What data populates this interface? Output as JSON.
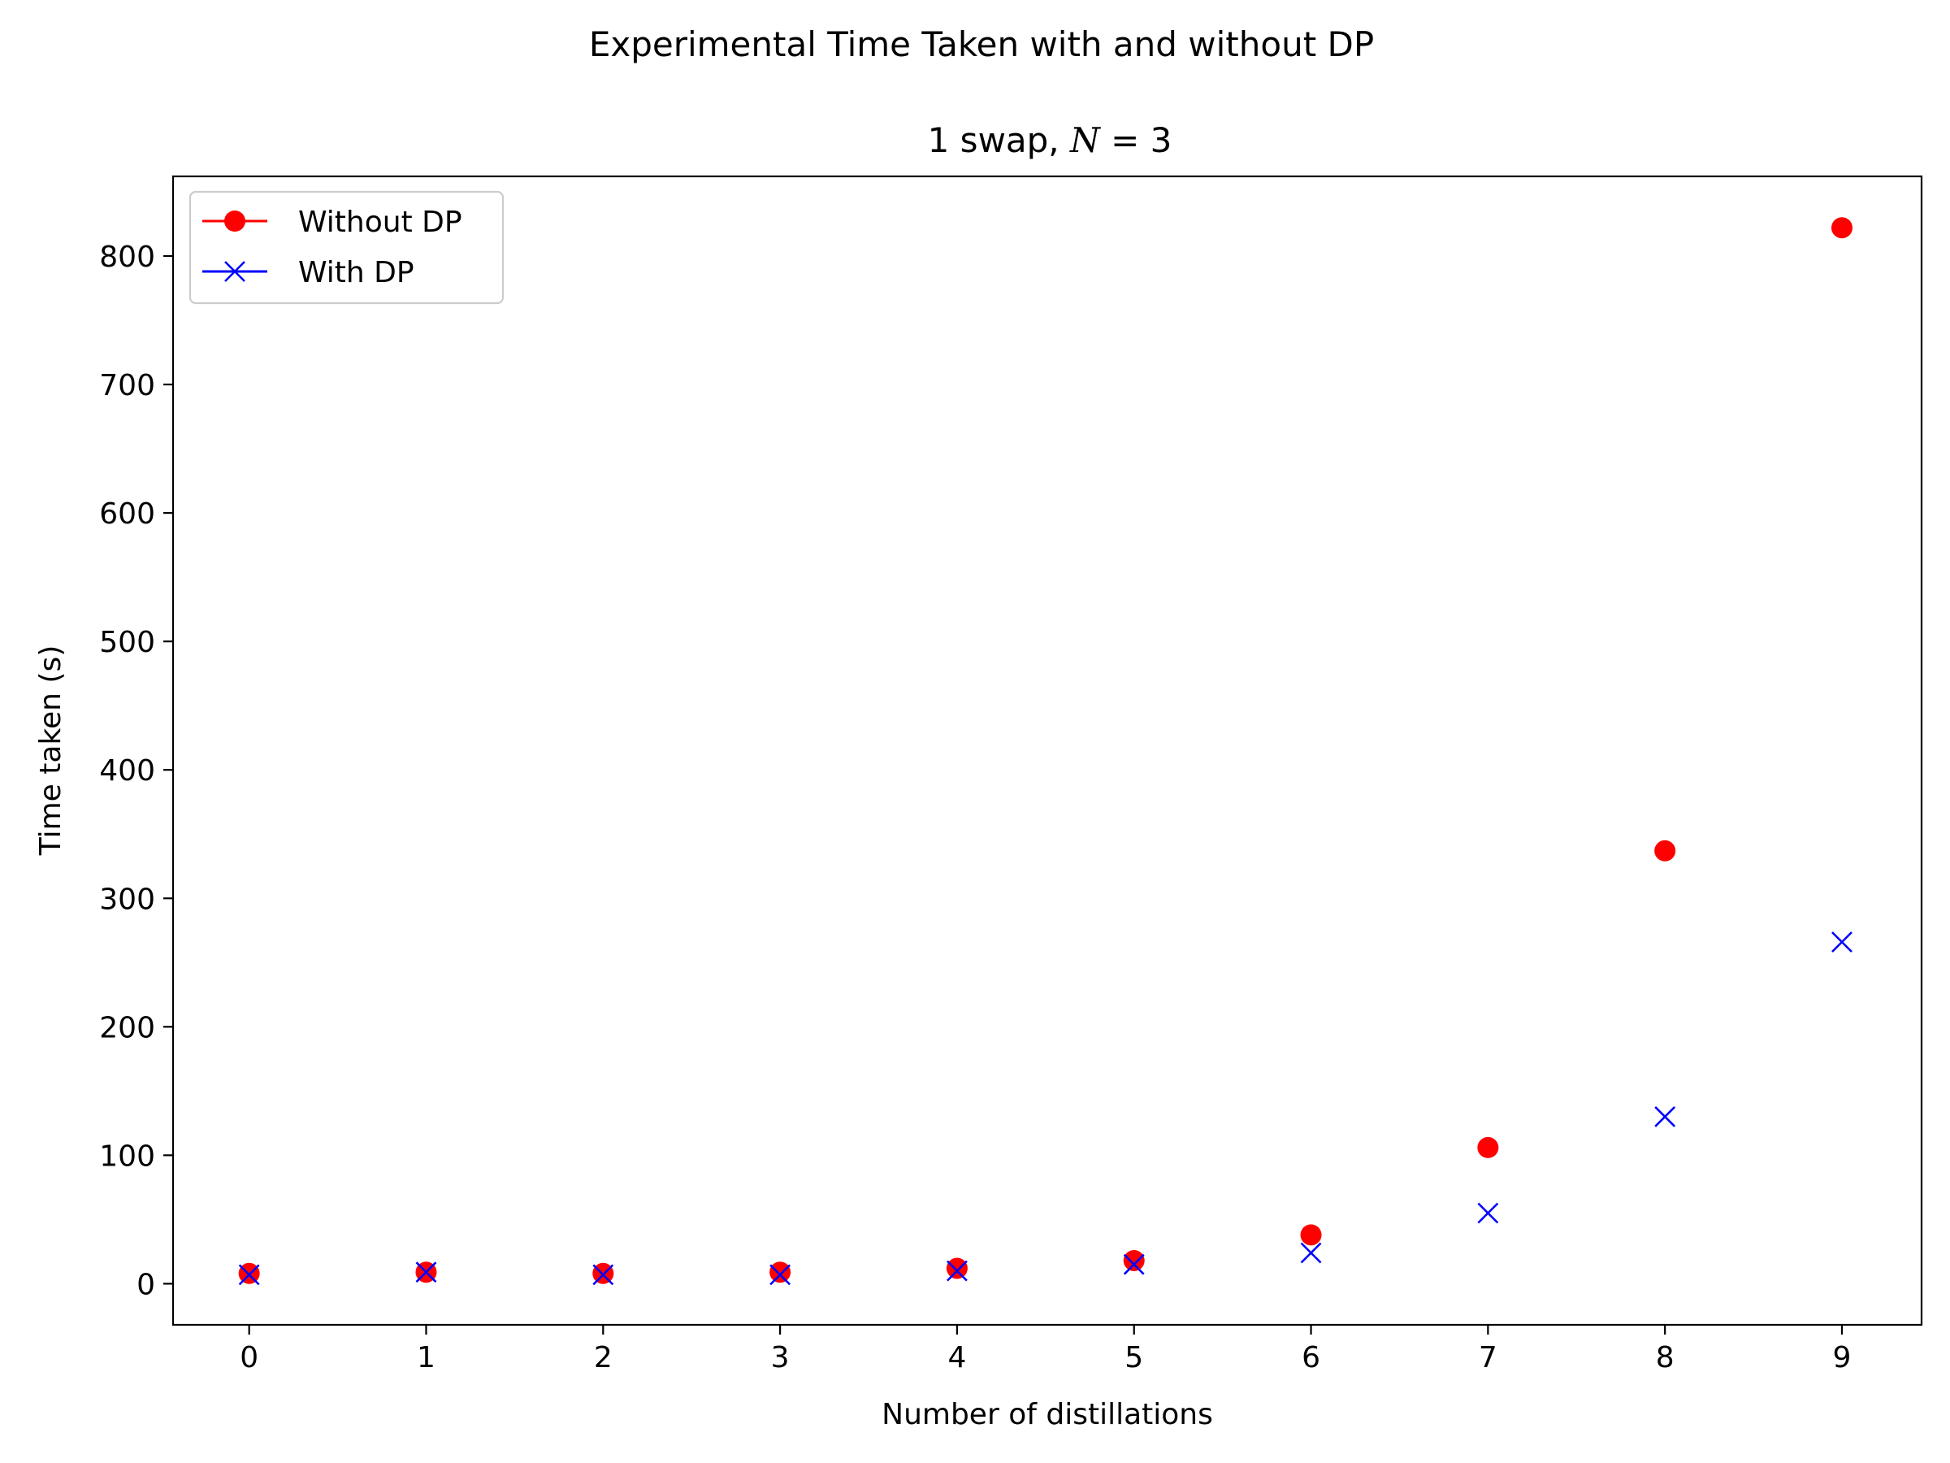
{
  "figure": {
    "suptitle": "Experimental Time Taken with and without DP"
  },
  "chart_data": {
    "type": "scatter",
    "title_prefix": "1 swap, ",
    "title_math_var": "N",
    "title_math_rest": " = 3",
    "xlabel": "Number of distillations",
    "ylabel": "Time taken (s)",
    "x": [
      0,
      1,
      2,
      3,
      4,
      5,
      6,
      7,
      8,
      9
    ],
    "xlim": [
      -0.43,
      9.45
    ],
    "ylim": [
      -32,
      862
    ],
    "xticks": [
      0,
      1,
      2,
      3,
      4,
      5,
      6,
      7,
      8,
      9
    ],
    "yticks": [
      0,
      100,
      200,
      300,
      400,
      500,
      600,
      700,
      800
    ],
    "legend_position": "upper-left",
    "series": [
      {
        "name": "Without DP",
        "marker": "circle",
        "color": "#ff0000",
        "values": [
          8,
          9,
          8,
          9,
          12,
          18,
          38,
          106,
          337,
          822
        ]
      },
      {
        "name": "With DP",
        "marker": "x",
        "color": "#0000ff",
        "values": [
          7,
          9,
          7,
          7,
          10,
          15,
          24,
          55,
          130,
          266
        ]
      }
    ]
  }
}
